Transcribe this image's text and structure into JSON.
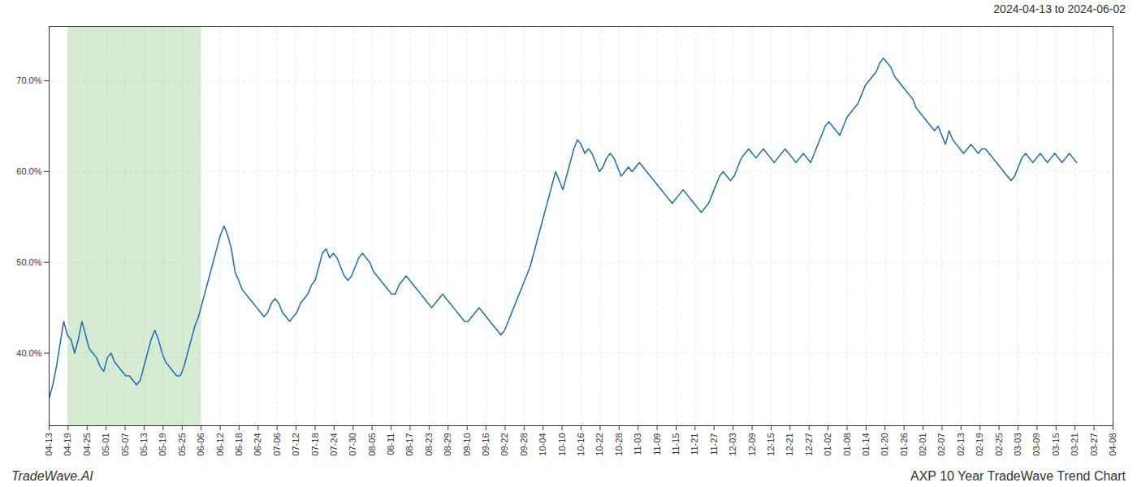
{
  "chart_data": {
    "type": "line",
    "title": "AXP 10 Year TradeWave Trend Chart",
    "subtitle": "2024-04-13 to 2024-06-02",
    "caption": "TradeWave.AI",
    "color": "#1f6cb0",
    "grid": true,
    "xlim": [
      0,
      292
    ],
    "xticks": [
      {
        "value": 0,
        "label": "04-13"
      },
      {
        "value": 5.214286,
        "label": "04-19"
      },
      {
        "value": 10.428571,
        "label": "04-25"
      },
      {
        "value": 15.642857,
        "label": "05-01"
      },
      {
        "value": 20.857143,
        "label": "05-07"
      },
      {
        "value": 26.071429,
        "label": "05-13"
      },
      {
        "value": 31.285714,
        "label": "05-19"
      },
      {
        "value": 36.5,
        "label": "05-25"
      },
      {
        "value": 41.714286,
        "label": "06-06"
      },
      {
        "value": 46.928571,
        "label": "06-12"
      },
      {
        "value": 52.142857,
        "label": "06-18"
      },
      {
        "value": 57.357143,
        "label": "06-24"
      },
      {
        "value": 62.571429,
        "label": "07-06"
      },
      {
        "value": 67.785714,
        "label": "07-12"
      },
      {
        "value": 73,
        "label": "07-18"
      },
      {
        "value": 78.214286,
        "label": "07-24"
      },
      {
        "value": 83.428571,
        "label": "07-30"
      },
      {
        "value": 88.642857,
        "label": "08-05"
      },
      {
        "value": 93.857143,
        "label": "08-11"
      },
      {
        "value": 99.071429,
        "label": "08-17"
      },
      {
        "value": 104.285714,
        "label": "08-23"
      },
      {
        "value": 109.5,
        "label": "08-29"
      },
      {
        "value": 114.714286,
        "label": "09-10"
      },
      {
        "value": 119.928571,
        "label": "09-16"
      },
      {
        "value": 125.142857,
        "label": "09-22"
      },
      {
        "value": 130.357143,
        "label": "09-28"
      },
      {
        "value": 135.571429,
        "label": "10-04"
      },
      {
        "value": 140.785714,
        "label": "10-10"
      },
      {
        "value": 146,
        "label": "10-16"
      },
      {
        "value": 151.214286,
        "label": "10-22"
      },
      {
        "value": 156.428571,
        "label": "10-28"
      },
      {
        "value": 161.642857,
        "label": "11-03"
      },
      {
        "value": 166.857143,
        "label": "11-09"
      },
      {
        "value": 172.071429,
        "label": "11-15"
      },
      {
        "value": 177.285714,
        "label": "11-21"
      },
      {
        "value": 182.5,
        "label": "11-27"
      },
      {
        "value": 187.714286,
        "label": "12-03"
      },
      {
        "value": 192.928571,
        "label": "12-09"
      },
      {
        "value": 198.142857,
        "label": "12-15"
      },
      {
        "value": 203.357143,
        "label": "12-21"
      },
      {
        "value": 208.571429,
        "label": "12-27"
      },
      {
        "value": 213.785714,
        "label": "01-02"
      },
      {
        "value": 219,
        "label": "01-08"
      },
      {
        "value": 224.214286,
        "label": "01-14"
      },
      {
        "value": 229.428571,
        "label": "01-20"
      },
      {
        "value": 234.642857,
        "label": "01-26"
      },
      {
        "value": 239.857143,
        "label": "02-01"
      },
      {
        "value": 245.071429,
        "label": "02-07"
      },
      {
        "value": 250.285714,
        "label": "02-13"
      },
      {
        "value": 255.5,
        "label": "02-19"
      },
      {
        "value": 260.714286,
        "label": "02-25"
      },
      {
        "value": 265.928571,
        "label": "03-03"
      },
      {
        "value": 271.142857,
        "label": "03-09"
      },
      {
        "value": 276.357143,
        "label": "03-15"
      },
      {
        "value": 281.571429,
        "label": "03-21"
      },
      {
        "value": 286.785714,
        "label": "03-27"
      },
      {
        "value": 292,
        "label": "04-08"
      }
    ],
    "ylim": [
      32,
      76
    ],
    "yticks": [
      {
        "value": 40.0,
        "label": "40.0%"
      },
      {
        "value": 50.0,
        "label": "50.0%"
      },
      {
        "value": 60.0,
        "label": "60.0%"
      },
      {
        "value": 70.0,
        "label": "70.0%"
      }
    ],
    "highlight": {
      "start": 5.214286,
      "end": 41.714286,
      "color": "#d6ecd2"
    },
    "values": [
      35.0,
      36.5,
      38.5,
      41.0,
      43.5,
      42.0,
      41.5,
      40.0,
      41.5,
      43.5,
      42.0,
      40.5,
      40.0,
      39.5,
      38.5,
      38.0,
      39.5,
      40.0,
      39.0,
      38.5,
      38.0,
      37.5,
      37.5,
      37.0,
      36.5,
      37.0,
      38.5,
      40.0,
      41.5,
      42.5,
      41.5,
      40.0,
      39.0,
      38.5,
      38.0,
      37.5,
      37.5,
      38.5,
      40.0,
      41.5,
      43.0,
      44.0,
      45.5,
      47.0,
      48.5,
      50.0,
      51.5,
      53.0,
      54.0,
      53.0,
      51.5,
      49.0,
      48.0,
      47.0,
      46.5,
      46.0,
      45.5,
      45.0,
      44.5,
      44.0,
      44.5,
      45.5,
      46.0,
      45.5,
      44.5,
      44.0,
      43.5,
      44.0,
      44.5,
      45.5,
      46.0,
      46.5,
      47.5,
      48.0,
      49.5,
      51.0,
      51.5,
      50.5,
      51.0,
      50.5,
      49.5,
      48.5,
      48.0,
      48.5,
      49.5,
      50.5,
      51.0,
      50.5,
      50.0,
      49.0,
      48.5,
      48.0,
      47.5,
      47.0,
      46.5,
      46.5,
      47.5,
      48.0,
      48.5,
      48.0,
      47.5,
      47.0,
      46.5,
      46.0,
      45.5,
      45.0,
      45.5,
      46.0,
      46.5,
      46.0,
      45.5,
      45.0,
      44.5,
      44.0,
      43.5,
      43.5,
      44.0,
      44.5,
      45.0,
      44.5,
      44.0,
      43.5,
      43.0,
      42.5,
      42.0,
      42.5,
      43.5,
      44.5,
      45.5,
      46.5,
      47.5,
      48.5,
      49.5,
      51.0,
      52.5,
      54.0,
      55.5,
      57.0,
      58.5,
      60.0,
      59.0,
      58.0,
      59.5,
      61.0,
      62.5,
      63.5,
      63.0,
      62.0,
      62.5,
      62.0,
      61.0,
      60.0,
      60.5,
      61.5,
      62.0,
      61.5,
      60.5,
      59.5,
      60.0,
      60.5,
      60.0,
      60.5,
      61.0,
      60.5,
      60.0,
      59.5,
      59.0,
      58.5,
      58.0,
      57.5,
      57.0,
      56.5,
      57.0,
      57.5,
      58.0,
      57.5,
      57.0,
      56.5,
      56.0,
      55.5,
      56.0,
      56.5,
      57.5,
      58.5,
      59.5,
      60.0,
      59.5,
      59.0,
      59.5,
      60.5,
      61.5,
      62.0,
      62.5,
      62.0,
      61.5,
      62.0,
      62.5,
      62.0,
      61.5,
      61.0,
      61.5,
      62.0,
      62.5,
      62.0,
      61.5,
      61.0,
      61.5,
      62.0,
      61.5,
      61.0,
      62.0,
      63.0,
      64.0,
      65.0,
      65.5,
      65.0,
      64.5,
      64.0,
      65.0,
      66.0,
      66.5,
      67.0,
      67.5,
      68.5,
      69.5,
      70.0,
      70.5,
      71.0,
      72.0,
      72.5,
      72.0,
      71.5,
      70.5,
      70.0,
      69.5,
      69.0,
      68.5,
      68.0,
      67.0,
      66.5,
      66.0,
      65.5,
      65.0,
      64.5,
      65.0,
      64.0,
      63.0,
      64.5,
      63.5,
      63.0,
      62.5,
      62.0,
      62.5,
      63.0,
      62.5,
      62.0,
      62.5,
      62.5,
      62.0,
      61.5,
      61.0,
      60.5,
      60.0,
      59.5,
      59.0,
      59.5,
      60.5,
      61.5,
      62.0,
      61.5,
      61.0,
      61.5,
      62.0,
      61.5,
      61.0,
      61.5,
      62.0,
      61.5,
      61.0,
      61.5,
      62.0,
      61.5,
      61.0
    ]
  }
}
